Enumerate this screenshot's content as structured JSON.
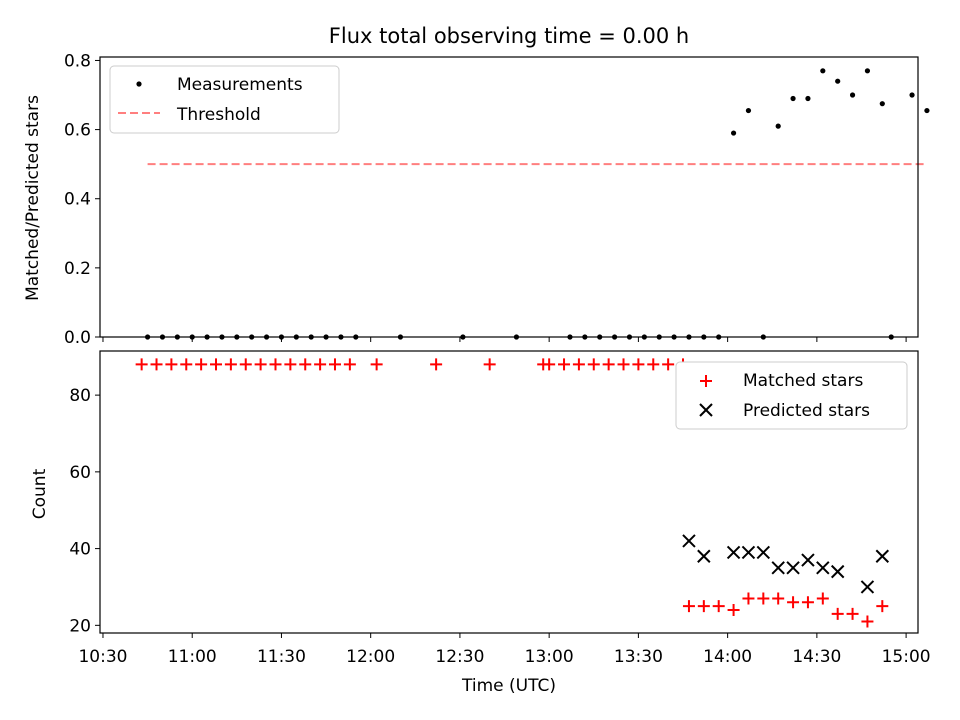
{
  "chart_data": [
    {
      "type": "scatter",
      "title": "Flux total observing time = 0.00 h",
      "xlabel": "",
      "ylabel": "Matched/Predicted stars",
      "ylim": [
        0,
        0.81
      ],
      "xlim": [
        "10:29",
        "15:04"
      ],
      "yticks": [
        "0.0",
        "0.2",
        "0.4",
        "0.6",
        "0.8"
      ],
      "grid": false,
      "legend": "top-left",
      "series": [
        {
          "name": "Measurements",
          "color": "#000000",
          "marker": "dot",
          "points": [
            [
              "10:45",
              0.0
            ],
            [
              "10:50",
              0.0
            ],
            [
              "10:55",
              0.0
            ],
            [
              "11:00",
              0.0
            ],
            [
              "11:05",
              0.0
            ],
            [
              "11:10",
              0.0
            ],
            [
              "11:15",
              0.0
            ],
            [
              "11:20",
              0.0
            ],
            [
              "11:25",
              0.0
            ],
            [
              "11:30",
              0.0
            ],
            [
              "11:35",
              0.0
            ],
            [
              "11:40",
              0.0
            ],
            [
              "11:45",
              0.0
            ],
            [
              "11:50",
              0.0
            ],
            [
              "11:55",
              0.0
            ],
            [
              "12:10",
              0.0
            ],
            [
              "12:31",
              0.0
            ],
            [
              "12:49",
              0.0
            ],
            [
              "13:07",
              0.0
            ],
            [
              "13:12",
              0.0
            ],
            [
              "13:17",
              0.0
            ],
            [
              "13:22",
              0.0
            ],
            [
              "13:27",
              0.0
            ],
            [
              "13:32",
              0.0
            ],
            [
              "13:37",
              0.0
            ],
            [
              "13:42",
              0.0
            ],
            [
              "13:47",
              0.0
            ],
            [
              "13:52",
              0.0
            ],
            [
              "13:57",
              0.0
            ],
            [
              "14:12",
              0.0
            ],
            [
              "14:55",
              0.0
            ],
            [
              "14:02",
              0.59
            ],
            [
              "14:07",
              0.655
            ],
            [
              "14:17",
              0.61
            ],
            [
              "14:22",
              0.69
            ],
            [
              "14:27",
              0.69
            ],
            [
              "14:32",
              0.77
            ],
            [
              "14:37",
              0.74
            ],
            [
              "14:42",
              0.7
            ],
            [
              "14:47",
              0.77
            ],
            [
              "14:52",
              0.675
            ],
            [
              "15:02",
              0.7
            ],
            [
              "15:07",
              0.655
            ]
          ]
        },
        {
          "name": "Threshold",
          "color": "#ff7f7f",
          "line": "dashed",
          "points": [
            [
              "10:45",
              0.5
            ],
            [
              "15:07",
              0.5
            ]
          ]
        }
      ]
    },
    {
      "type": "scatter",
      "title": "",
      "xlabel": "Time (UTC)",
      "ylabel": "Count",
      "ylim": [
        18,
        91.5
      ],
      "xlim": [
        "10:29",
        "15:04"
      ],
      "xticks": [
        "10:30",
        "11:00",
        "11:30",
        "12:00",
        "12:30",
        "13:00",
        "13:30",
        "14:00",
        "14:30",
        "15:00"
      ],
      "yticks": [
        "20",
        "40",
        "60",
        "80"
      ],
      "grid": false,
      "legend": "top-right",
      "series": [
        {
          "name": "Matched stars",
          "color": "#ff0000",
          "marker": "plus",
          "points": [
            [
              "10:43",
              88
            ],
            [
              "10:48",
              88
            ],
            [
              "10:53",
              88
            ],
            [
              "10:58",
              88
            ],
            [
              "11:03",
              88
            ],
            [
              "11:08",
              88
            ],
            [
              "11:13",
              88
            ],
            [
              "11:18",
              88
            ],
            [
              "11:23",
              88
            ],
            [
              "11:28",
              88
            ],
            [
              "11:33",
              88
            ],
            [
              "11:38",
              88
            ],
            [
              "11:43",
              88
            ],
            [
              "11:48",
              88
            ],
            [
              "11:53",
              88
            ],
            [
              "12:02",
              88
            ],
            [
              "12:22",
              88
            ],
            [
              "12:40",
              88
            ],
            [
              "12:58",
              88
            ],
            [
              "13:00",
              88
            ],
            [
              "13:05",
              88
            ],
            [
              "13:10",
              88
            ],
            [
              "13:15",
              88
            ],
            [
              "13:20",
              88
            ],
            [
              "13:25",
              88
            ],
            [
              "13:30",
              88
            ],
            [
              "13:35",
              88
            ],
            [
              "13:40",
              88
            ],
            [
              "13:45",
              88
            ],
            [
              "13:47",
              25
            ],
            [
              "13:52",
              25
            ],
            [
              "13:57",
              25
            ],
            [
              "14:02",
              24
            ],
            [
              "14:07",
              27
            ],
            [
              "14:12",
              27
            ],
            [
              "14:17",
              27
            ],
            [
              "14:22",
              26
            ],
            [
              "14:27",
              26
            ],
            [
              "14:32",
              27
            ],
            [
              "14:37",
              23
            ],
            [
              "14:42",
              23
            ],
            [
              "14:47",
              21
            ],
            [
              "14:52",
              25
            ]
          ]
        },
        {
          "name": "Predicted stars",
          "color": "#000000",
          "marker": "x",
          "points": [
            [
              "13:47",
              42
            ],
            [
              "13:52",
              38
            ],
            [
              "14:02",
              39
            ],
            [
              "14:07",
              39
            ],
            [
              "14:12",
              39
            ],
            [
              "14:17",
              35
            ],
            [
              "14:22",
              35
            ],
            [
              "14:27",
              37
            ],
            [
              "14:32",
              35
            ],
            [
              "14:37",
              34
            ],
            [
              "14:47",
              30
            ],
            [
              "14:52",
              38
            ]
          ]
        }
      ]
    }
  ]
}
